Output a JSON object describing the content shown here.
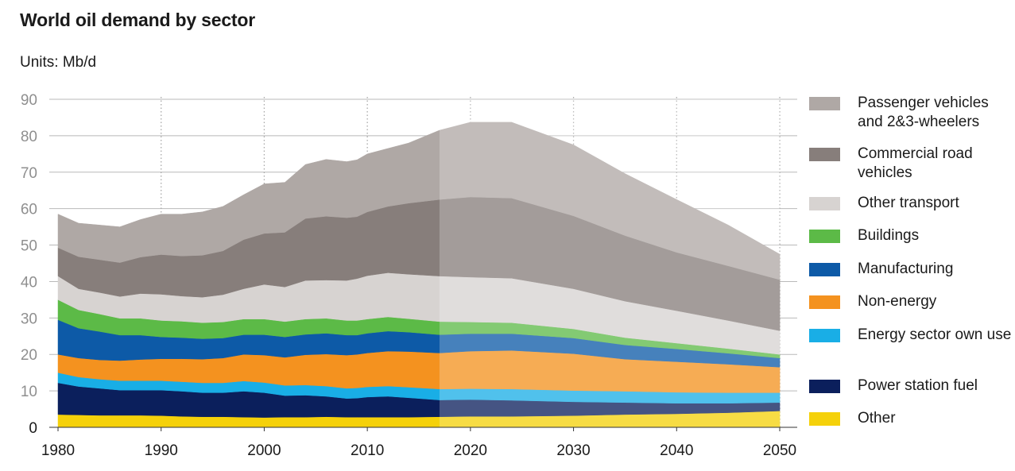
{
  "title": "World oil demand by sector",
  "units": "Units: Mb/d",
  "chart_data": {
    "type": "area",
    "stacked": true,
    "x": [
      1980,
      1982,
      1984,
      1986,
      1988,
      1990,
      1992,
      1994,
      1996,
      1998,
      2000,
      2002,
      2004,
      2006,
      2008,
      2009,
      2010,
      2012,
      2014,
      2017,
      2020,
      2024,
      2030,
      2035,
      2040,
      2045,
      2050
    ],
    "xticks": [
      1980,
      1990,
      2000,
      2010,
      2020,
      2030,
      2040,
      2050
    ],
    "yticks": [
      0,
      10,
      20,
      30,
      40,
      50,
      60,
      70,
      80,
      90
    ],
    "xlim": [
      1980,
      2050
    ],
    "ylim": [
      0,
      90
    ],
    "projection_start": 2017,
    "grid": "dotted",
    "legend_position": "right",
    "series": [
      {
        "name": "Other",
        "color": "#f5d10a",
        "values": [
          3.5,
          3.4,
          3.3,
          3.3,
          3.3,
          3.2,
          3.0,
          2.9,
          2.9,
          2.8,
          2.7,
          2.8,
          2.8,
          2.9,
          2.8,
          2.8,
          2.8,
          2.8,
          2.8,
          2.9,
          3.0,
          3.0,
          3.2,
          3.5,
          3.7,
          4.0,
          4.5
        ]
      },
      {
        "name": "Power station fuel",
        "color": "#0b1f5c",
        "values": [
          8.7,
          7.8,
          7.4,
          6.9,
          6.9,
          7.0,
          6.9,
          6.6,
          6.6,
          7.1,
          6.8,
          5.9,
          6.0,
          5.6,
          5.1,
          5.2,
          5.5,
          5.7,
          5.3,
          4.6,
          4.6,
          4.4,
          3.8,
          3.3,
          2.9,
          2.6,
          2.3
        ]
      },
      {
        "name": "Energy sector own use",
        "color": "#19aee6",
        "values": [
          2.8,
          2.6,
          2.5,
          2.6,
          2.6,
          2.6,
          2.6,
          2.7,
          2.7,
          2.8,
          2.8,
          2.8,
          2.8,
          2.8,
          2.8,
          2.8,
          2.8,
          2.8,
          2.9,
          3.0,
          3.0,
          3.1,
          3.1,
          3.1,
          3.0,
          2.9,
          2.7
        ]
      },
      {
        "name": "Non-energy",
        "color": "#f4921f",
        "values": [
          5.0,
          5.2,
          5.3,
          5.5,
          5.8,
          6.0,
          6.3,
          6.5,
          6.8,
          7.3,
          7.5,
          7.7,
          8.3,
          8.8,
          9.1,
          9.2,
          9.3,
          9.6,
          9.8,
          9.9,
          10.3,
          10.6,
          10.1,
          8.8,
          8.4,
          7.8,
          7.0
        ]
      },
      {
        "name": "Manufacturing",
        "color": "#0d5aa7",
        "values": [
          9.5,
          8.2,
          7.8,
          7.0,
          6.7,
          6.0,
          5.8,
          5.6,
          5.5,
          5.4,
          5.6,
          5.6,
          5.6,
          5.7,
          5.5,
          5.3,
          5.4,
          5.5,
          5.3,
          5.0,
          4.8,
          4.6,
          4.3,
          3.9,
          3.5,
          3.0,
          2.5
        ]
      },
      {
        "name": "Buildings",
        "color": "#5cba47",
        "values": [
          5.5,
          5.0,
          4.8,
          4.6,
          4.6,
          4.5,
          4.5,
          4.4,
          4.4,
          4.3,
          4.3,
          4.2,
          4.2,
          4.1,
          4.0,
          4.0,
          3.9,
          3.9,
          3.7,
          3.6,
          3.2,
          3.0,
          2.5,
          2.0,
          1.6,
          1.3,
          1.0
        ]
      },
      {
        "name": "Other transport",
        "color": "#d7d3d1",
        "values": [
          6.5,
          5.8,
          5.9,
          6.0,
          6.8,
          7.2,
          6.9,
          7.0,
          7.5,
          8.3,
          9.5,
          9.5,
          10.6,
          10.5,
          11.0,
          11.5,
          11.9,
          12.1,
          12.2,
          12.5,
          12.3,
          12.2,
          11.0,
          10.0,
          8.9,
          7.7,
          6.5
        ]
      },
      {
        "name": "Commercial road vehicles",
        "color": "#877e7b",
        "values": [
          7.8,
          8.8,
          9.0,
          9.3,
          10.0,
          10.9,
          11.0,
          11.5,
          12.0,
          13.5,
          14.0,
          15.0,
          17.0,
          17.5,
          17.2,
          17.0,
          17.5,
          18.2,
          19.5,
          21.0,
          22.0,
          22.0,
          20.0,
          18.0,
          16.0,
          15.0,
          14.0
        ]
      },
      {
        "name": "Passenger vehicles\nand 2&3-wheelers",
        "color": "#afa8a5",
        "values": [
          9.2,
          9.2,
          9.5,
          9.8,
          10.3,
          11.1,
          11.5,
          11.9,
          12.2,
          12.3,
          13.6,
          13.7,
          14.8,
          15.6,
          15.4,
          15.6,
          15.9,
          15.9,
          16.5,
          19.0,
          20.5,
          20.8,
          19.5,
          17.0,
          14.5,
          11.2,
          7.0
        ]
      }
    ]
  }
}
